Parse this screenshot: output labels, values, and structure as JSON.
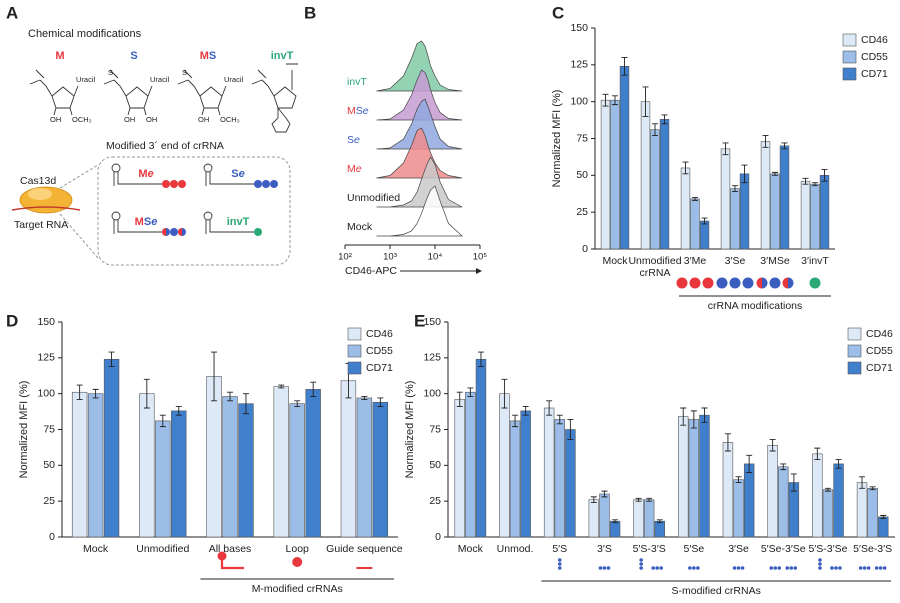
{
  "panels": [
    "A",
    "B",
    "C",
    "D",
    "E"
  ],
  "diagram": {
    "heading": "Chemical modifications",
    "structures": [
      {
        "title": [
          {
            "text": "M",
            "color": "#e8383d"
          }
        ],
        "labels": [
          {
            "text": "Uracil"
          },
          {
            "text": "OH"
          },
          {
            "text": "OCH₃",
            "color": "#e8383d"
          }
        ]
      },
      {
        "title": [
          {
            "text": "S",
            "color": "#3a5dbf"
          }
        ],
        "labels": [
          {
            "text": "Uracil"
          },
          {
            "text": "OH"
          },
          {
            "text": "OH"
          },
          {
            "text": "S",
            "color": "#3a5dbf"
          }
        ]
      },
      {
        "title": [
          {
            "text": "M",
            "color": "#e8383d"
          },
          {
            "text": "S",
            "color": "#3a5dbf"
          }
        ],
        "labels": [
          {
            "text": "Uracil"
          },
          {
            "text": "OH"
          },
          {
            "text": "OCH₃",
            "color": "#e8383d"
          },
          {
            "text": "S",
            "color": "#3a5dbf"
          }
        ]
      },
      {
        "title": [
          {
            "text": "invT",
            "color": "#2aa876"
          }
        ],
        "labels": []
      }
    ],
    "subtitle": "Modified 3´ end of crRNA",
    "protein": "Cas13d",
    "target": "Target RNA",
    "variants": [
      [
        {
          "text": "M",
          "color": "#e8383d"
        },
        {
          "text": "e",
          "color": "#e8383d",
          "italic": true
        }
      ],
      [
        {
          "text": "S",
          "color": "#3a5dbf"
        },
        {
          "text": "e",
          "color": "#3a5dbf",
          "italic": true
        }
      ],
      [
        {
          "text": "M",
          "color": "#e8383d"
        },
        {
          "text": "S",
          "color": "#3a5dbf"
        },
        {
          "text": "e",
          "color": "#3a5dbf",
          "italic": true
        }
      ],
      [
        {
          "text": "invT",
          "color": "#2aa876"
        }
      ]
    ]
  },
  "chart_data": [
    {
      "type": "ridgeline",
      "xlabel": "CD46-APC",
      "log_x": true,
      "xlim": [
        100,
        100000
      ],
      "xticks": [
        {
          "value": 100,
          "label": "10²"
        },
        {
          "value": 1000,
          "label": "10³"
        },
        {
          "value": 10000,
          "label": "10⁴"
        },
        {
          "value": 100000,
          "label": "10⁵"
        }
      ],
      "x": [
        500,
        1000,
        2000,
        3000,
        4000,
        5000,
        6000,
        7000,
        8000,
        10000,
        13000,
        20000,
        40000
      ],
      "series": [
        {
          "name_parts": [
            {
              "text": "Mock",
              "color": "#222222"
            }
          ],
          "color": "#ffffff",
          "values": [
            0,
            0,
            0.03,
            0.1,
            0.25,
            0.45,
            0.65,
            0.8,
            0.92,
            1,
            0.7,
            0.25,
            0
          ]
        },
        {
          "name_parts": [
            {
              "text": "Unmodified",
              "color": "#222222"
            }
          ],
          "color": "#c9c9c9",
          "values": [
            0,
            0,
            0.04,
            0.12,
            0.3,
            0.55,
            0.75,
            0.9,
            1,
            0.85,
            0.5,
            0.15,
            0
          ]
        },
        {
          "name_parts": [
            {
              "text": "M",
              "color": "#e8383d"
            },
            {
              "text": "e",
              "color": "#e8383d",
              "italic": true
            }
          ],
          "color": "#f08c8c",
          "values": [
            0,
            0.05,
            0.3,
            0.65,
            0.95,
            1,
            0.85,
            0.65,
            0.5,
            0.3,
            0.15,
            0.05,
            0
          ]
        },
        {
          "name_parts": [
            {
              "text": "S",
              "color": "#3a5dbf"
            },
            {
              "text": "e",
              "color": "#3a5dbf",
              "italic": true
            }
          ],
          "color": "#8fa8df",
          "values": [
            0,
            0.02,
            0.2,
            0.5,
            0.8,
            0.95,
            1,
            0.85,
            0.7,
            0.45,
            0.2,
            0.05,
            0
          ]
        },
        {
          "name_parts": [
            {
              "text": "M",
              "color": "#e8383d"
            },
            {
              "text": "S",
              "color": "#3a5dbf"
            },
            {
              "text": "e",
              "color": "#3a5dbf",
              "italic": true
            }
          ],
          "color": "#c59bd2",
          "values": [
            0,
            0.02,
            0.2,
            0.5,
            0.8,
            1,
            0.95,
            0.8,
            0.6,
            0.35,
            0.15,
            0.03,
            0
          ]
        },
        {
          "name_parts": [
            {
              "text": "invT",
              "color": "#2aa876"
            }
          ],
          "color": "#80cba6",
          "values": [
            0,
            0.05,
            0.3,
            0.65,
            0.95,
            1,
            0.9,
            0.7,
            0.5,
            0.3,
            0.12,
            0.03,
            0
          ]
        }
      ]
    },
    {
      "type": "bar",
      "ylabel": "Normalized MFI (%)",
      "categories": [
        "Mock",
        "Unmodified\ncrRNA",
        "3′Me",
        "3′Se",
        "3′MSe",
        "3′invT"
      ],
      "ylim": [
        0,
        150
      ],
      "yticks": [
        0,
        25,
        50,
        75,
        100,
        125,
        150
      ],
      "legend": "upper right",
      "group_label": "crRNA modifications",
      "series": [
        {
          "name": "CD46",
          "color": "#dde9f6",
          "values": [
            101,
            100,
            55,
            68,
            73,
            46
          ],
          "errors": [
            4,
            10,
            4,
            4,
            4,
            2
          ]
        },
        {
          "name": "CD55",
          "color": "#9bbde8",
          "values": [
            101,
            81,
            34,
            41,
            51,
            44
          ],
          "errors": [
            3,
            4,
            1,
            2,
            1,
            1
          ]
        },
        {
          "name": "CD71",
          "color": "#3f7fcc",
          "values": [
            124,
            88,
            19,
            51,
            70,
            50
          ],
          "errors": [
            6,
            3,
            2,
            6,
            2,
            4
          ]
        }
      ]
    },
    {
      "type": "bar",
      "ylabel": "Normalized MFI (%)",
      "categories": [
        "Mock",
        "Unmodified",
        "All bases",
        "Loop",
        "Guide sequence"
      ],
      "ylim": [
        0,
        150
      ],
      "yticks": [
        0,
        25,
        50,
        75,
        100,
        125,
        150
      ],
      "legend": "upper right",
      "group_label": "M-modified crRNAs",
      "series": [
        {
          "name": "CD46",
          "color": "#dde9f6",
          "values": [
            101,
            100,
            112,
            105,
            109
          ],
          "errors": [
            5,
            10,
            17,
            1,
            12
          ]
        },
        {
          "name": "CD55",
          "color": "#9bbde8",
          "values": [
            100,
            81,
            98,
            93,
            97
          ],
          "errors": [
            3,
            4,
            3,
            2,
            1
          ]
        },
        {
          "name": "CD71",
          "color": "#3f7fcc",
          "values": [
            124,
            88,
            93,
            103,
            94
          ],
          "errors": [
            5,
            3,
            7,
            5,
            3
          ]
        }
      ]
    },
    {
      "type": "bar",
      "ylabel": "Normalized MFI (%)",
      "categories": [
        "Mock",
        "Unmod.",
        "5′S",
        "3′S",
        "5′S-3′S",
        "5′Se",
        "3′Se",
        "5′Se-3′Se",
        "5′S-3′Se",
        "5′Se-3′S"
      ],
      "ylim": [
        0,
        150
      ],
      "yticks": [
        0,
        25,
        50,
        75,
        100,
        125,
        150
      ],
      "legend": "upper right",
      "group_label": "S-modified crRNAs",
      "series": [
        {
          "name": "CD46",
          "color": "#dde9f6",
          "values": [
            96,
            100,
            90,
            26,
            26,
            84,
            66,
            64,
            58,
            38
          ],
          "errors": [
            5,
            10,
            5,
            2,
            1,
            6,
            6,
            4,
            4,
            4
          ]
        },
        {
          "name": "CD55",
          "color": "#9bbde8",
          "values": [
            101,
            81,
            82,
            30,
            26,
            82,
            40,
            49,
            33,
            34
          ],
          "errors": [
            3,
            4,
            3,
            2,
            1,
            6,
            2,
            2,
            1,
            1
          ]
        },
        {
          "name": "CD71",
          "color": "#3f7fcc",
          "values": [
            124,
            88,
            75,
            11,
            11,
            85,
            51,
            38,
            51,
            14
          ],
          "errors": [
            5,
            3,
            7,
            1,
            1,
            5,
            6,
            6,
            3,
            1
          ]
        }
      ]
    }
  ]
}
